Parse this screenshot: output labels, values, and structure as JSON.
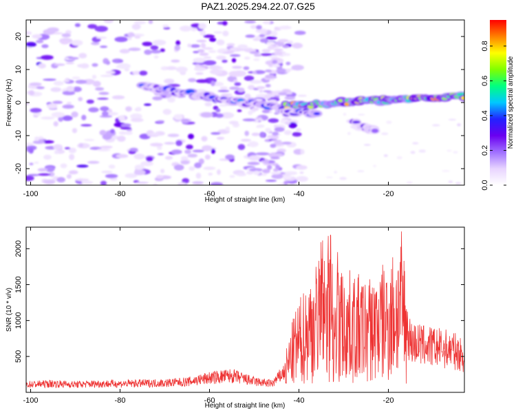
{
  "title": "PAZ1.2025.294.22.07.G25",
  "chart_data": [
    {
      "type": "heatmap",
      "name": "spectrogram",
      "xlabel": "Height of straight line (km)",
      "ylabel": "Frequency (Hz)",
      "xlim": [
        -101,
        -3
      ],
      "ylim": [
        -25,
        25
      ],
      "xticks": [
        -100,
        -80,
        -60,
        -40,
        -20
      ],
      "yticks": [
        -20,
        -10,
        0,
        10,
        20
      ],
      "colorbar": {
        "label": "Normalized spectral amplitude",
        "range": [
          0,
          0.95
        ],
        "ticks": [
          0.0,
          0.2,
          0.4,
          0.6,
          0.8
        ],
        "colors": [
          "#ffffff",
          "#e8d4ff",
          "#a070ff",
          "#6a00f0",
          "#2222ff",
          "#00c8ff",
          "#00ff80",
          "#80ff00",
          "#ffff00",
          "#ff8000",
          "#ff0000"
        ]
      },
      "ridges": [
        {
          "x_start": -75,
          "x_end": -43,
          "f_start": 5,
          "f_end": -2,
          "amplitude": 0.45
        },
        {
          "x_start": -43,
          "x_end": -3,
          "f_start": -1,
          "f_end": 2,
          "amplitude": 0.85
        },
        {
          "x_start": -44,
          "x_end": -36,
          "f_start": -3,
          "f_end": -3,
          "amplitude": 0.4
        },
        {
          "x_start": -28,
          "x_end": -23,
          "f_start": -6,
          "f_end": -9,
          "amplitude": 0.3
        }
      ]
    },
    {
      "type": "line",
      "name": "snr",
      "xlabel": "Height of straight line (km)",
      "ylabel": "SNR (10 * v/v)",
      "xlim": [
        -101,
        -3
      ],
      "ylim": [
        0,
        2300
      ],
      "xticks": [
        -100,
        -80,
        -60,
        -40,
        -20
      ],
      "yticks": [
        500,
        1000,
        1500,
        2000
      ],
      "color": "#ee3333",
      "series": [
        {
          "name": "SNR",
          "x": [
            -101,
            -95,
            -90,
            -85,
            -80,
            -75,
            -70,
            -65,
            -60,
            -55,
            -50,
            -46,
            -43,
            -41,
            -38,
            -35,
            -33,
            -31,
            -28,
            -25,
            -23,
            -20,
            -17,
            -15,
            -12,
            -9,
            -6,
            -3
          ],
          "y": [
            110,
            120,
            110,
            120,
            120,
            125,
            130,
            145,
            200,
            230,
            150,
            120,
            300,
            600,
            850,
            1050,
            1100,
            950,
            900,
            850,
            900,
            1000,
            1200,
            700,
            650,
            620,
            600,
            500
          ]
        }
      ]
    }
  ]
}
